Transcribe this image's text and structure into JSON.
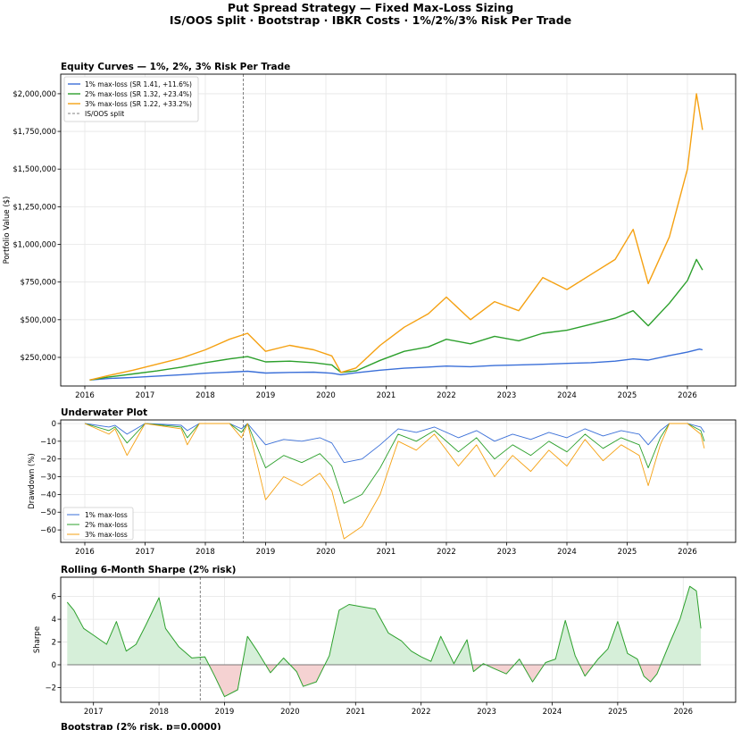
{
  "suptitle": {
    "line1": "Put Spread Strategy — Fixed Max-Loss Sizing",
    "line2": "IS/OOS Split · Bootstrap · IBKR Costs · 1%/2%/3% Risk Per Trade"
  },
  "colors": {
    "s1": "#3a6fd8",
    "s2": "#2ca02c",
    "s3": "#f5a112",
    "split": "#808080",
    "pos_fill": "#d6efd9",
    "neg_fill": "#f5d2d2",
    "grid": "#e6e6e6"
  },
  "chart_data": [
    {
      "type": "line",
      "title": "Equity Curves — 1%, 2%, 3% Risk Per Trade",
      "xlabel": "",
      "ylabel": "Portfolio Value ($)",
      "xlim": [
        2015.6,
        2026.8
      ],
      "ylim": [
        60000,
        2130000
      ],
      "xticks": [
        2016,
        2017,
        2018,
        2019,
        2020,
        2021,
        2022,
        2023,
        2024,
        2025,
        2026
      ],
      "yticks": [
        250000,
        500000,
        750000,
        1000000,
        1250000,
        1500000,
        1750000,
        2000000
      ],
      "ytick_labels": [
        "$250,000",
        "$500,000",
        "$750,000",
        "$1,000,000",
        "$1,250,000",
        "$1,500,000",
        "$1,750,000",
        "$2,000,000"
      ],
      "split_x": 2018.63,
      "legend_position": "top-left",
      "legend": [
        "1% max-loss (SR 1.41, +11.6%)",
        "2% max-loss (SR 1.32, +23.4%)",
        "3% max-loss (SR 1.22, +33.2%)",
        "IS/OOS split"
      ],
      "series": [
        {
          "name": "1% max-loss (SR 1.41, +11.6%)",
          "x": [
            2016.08,
            2016.4,
            2016.8,
            2017.2,
            2017.6,
            2018.0,
            2018.4,
            2018.7,
            2019.0,
            2019.4,
            2019.8,
            2020.1,
            2020.25,
            2020.5,
            2020.9,
            2021.3,
            2021.7,
            2022.0,
            2022.4,
            2022.8,
            2023.2,
            2023.6,
            2024.0,
            2024.4,
            2024.8,
            2025.1,
            2025.35,
            2025.7,
            2026.0,
            2026.2,
            2026.25
          ],
          "values": [
            100000,
            110000,
            117000,
            126000,
            135000,
            145000,
            152000,
            158000,
            146000,
            150000,
            152000,
            145000,
            135000,
            148000,
            165000,
            178000,
            186000,
            192000,
            188000,
            196000,
            200000,
            204000,
            210000,
            215000,
            225000,
            240000,
            232000,
            262000,
            285000,
            305000,
            300000
          ]
        },
        {
          "name": "2% max-loss (SR 1.32, +23.4%)",
          "x": [
            2016.08,
            2016.4,
            2016.8,
            2017.2,
            2017.6,
            2018.0,
            2018.4,
            2018.7,
            2019.0,
            2019.4,
            2019.8,
            2020.1,
            2020.25,
            2020.5,
            2020.9,
            2021.3,
            2021.7,
            2022.0,
            2022.4,
            2022.8,
            2023.2,
            2023.6,
            2024.0,
            2024.4,
            2024.8,
            2025.1,
            2025.35,
            2025.7,
            2026.0,
            2026.15,
            2026.25
          ],
          "values": [
            100000,
            120000,
            140000,
            160000,
            185000,
            215000,
            240000,
            255000,
            220000,
            225000,
            215000,
            200000,
            150000,
            160000,
            230000,
            290000,
            320000,
            370000,
            340000,
            390000,
            360000,
            410000,
            430000,
            470000,
            510000,
            560000,
            460000,
            610000,
            760000,
            900000,
            830000
          ]
        },
        {
          "name": "3% max-loss (SR 1.22, +33.2%)",
          "x": [
            2016.08,
            2016.4,
            2016.8,
            2017.2,
            2017.6,
            2018.0,
            2018.4,
            2018.7,
            2019.0,
            2019.4,
            2019.8,
            2020.1,
            2020.25,
            2020.5,
            2020.9,
            2021.3,
            2021.7,
            2022.0,
            2022.4,
            2022.8,
            2023.2,
            2023.6,
            2024.0,
            2024.4,
            2024.8,
            2025.1,
            2025.35,
            2025.7,
            2026.0,
            2026.15,
            2026.25
          ],
          "values": [
            100000,
            130000,
            165000,
            205000,
            245000,
            300000,
            370000,
            410000,
            290000,
            330000,
            300000,
            260000,
            150000,
            180000,
            330000,
            450000,
            540000,
            650000,
            500000,
            620000,
            560000,
            780000,
            700000,
            800000,
            900000,
            1100000,
            740000,
            1050000,
            1500000,
            2000000,
            1760000
          ]
        }
      ]
    },
    {
      "type": "line",
      "title": "Underwater Plot",
      "ylabel": "Drawdown (%)",
      "xlim": [
        2015.6,
        2026.8
      ],
      "ylim": [
        -67,
        2
      ],
      "xticks": [
        2016,
        2017,
        2018,
        2019,
        2020,
        2021,
        2022,
        2023,
        2024,
        2025,
        2026
      ],
      "yticks": [
        0,
        -10,
        -20,
        -30,
        -40,
        -50,
        -60
      ],
      "ytick_labels": [
        "0",
        "−10",
        "−20",
        "−30",
        "−40",
        "−50",
        "−60"
      ],
      "split_x": 2018.63,
      "legend_position": "bottom-left",
      "legend": [
        "1% max-loss",
        "2% max-loss",
        "3% max-loss"
      ],
      "series": [
        {
          "name": "1% max-loss",
          "x": [
            2016.0,
            2016.4,
            2016.5,
            2016.7,
            2017.0,
            2017.6,
            2017.7,
            2017.9,
            2018.4,
            2018.6,
            2018.7,
            2019.0,
            2019.3,
            2019.6,
            2019.9,
            2020.1,
            2020.3,
            2020.6,
            2020.9,
            2021.2,
            2021.5,
            2021.8,
            2022.2,
            2022.5,
            2022.8,
            2023.1,
            2023.4,
            2023.7,
            2024.0,
            2024.3,
            2024.6,
            2024.9,
            2025.2,
            2025.35,
            2025.55,
            2025.7,
            2026.0,
            2026.22,
            2026.28
          ],
          "values": [
            0,
            -2,
            -1,
            -6,
            0,
            -1,
            -4,
            0,
            0,
            -3,
            0,
            -12,
            -9,
            -10,
            -8,
            -11,
            -22,
            -20,
            -12,
            -3,
            -5,
            -2,
            -8,
            -4,
            -10,
            -6,
            -9,
            -5,
            -8,
            -3,
            -7,
            -4,
            -6,
            -12,
            -4,
            0,
            0,
            -2,
            -5
          ]
        },
        {
          "name": "2% max-loss",
          "x": [
            2016.0,
            2016.4,
            2016.5,
            2016.7,
            2017.0,
            2017.6,
            2017.7,
            2017.9,
            2018.4,
            2018.6,
            2018.7,
            2019.0,
            2019.3,
            2019.6,
            2019.9,
            2020.1,
            2020.3,
            2020.6,
            2020.9,
            2021.2,
            2021.5,
            2021.8,
            2022.2,
            2022.5,
            2022.8,
            2023.1,
            2023.4,
            2023.7,
            2024.0,
            2024.3,
            2024.6,
            2024.9,
            2025.2,
            2025.35,
            2025.55,
            2025.7,
            2026.0,
            2026.22,
            2026.28
          ],
          "values": [
            0,
            -4,
            -2,
            -11,
            0,
            -2,
            -8,
            0,
            0,
            -5,
            0,
            -25,
            -18,
            -22,
            -17,
            -24,
            -45,
            -40,
            -25,
            -6,
            -10,
            -4,
            -16,
            -8,
            -20,
            -12,
            -18,
            -10,
            -16,
            -6,
            -14,
            -8,
            -12,
            -25,
            -8,
            0,
            0,
            -4,
            -10
          ]
        },
        {
          "name": "3% max-loss",
          "x": [
            2016.0,
            2016.4,
            2016.5,
            2016.7,
            2017.0,
            2017.6,
            2017.7,
            2017.9,
            2018.4,
            2018.6,
            2018.7,
            2019.0,
            2019.3,
            2019.6,
            2019.9,
            2020.1,
            2020.3,
            2020.6,
            2020.9,
            2021.2,
            2021.5,
            2021.8,
            2022.2,
            2022.5,
            2022.8,
            2023.1,
            2023.4,
            2023.7,
            2024.0,
            2024.3,
            2024.6,
            2024.9,
            2025.2,
            2025.35,
            2025.55,
            2025.7,
            2026.0,
            2026.22,
            2026.28
          ],
          "values": [
            0,
            -6,
            -3,
            -18,
            0,
            -3,
            -12,
            0,
            0,
            -8,
            0,
            -43,
            -30,
            -35,
            -28,
            -38,
            -65,
            -58,
            -40,
            -10,
            -15,
            -6,
            -24,
            -12,
            -30,
            -18,
            -27,
            -15,
            -24,
            -9,
            -21,
            -12,
            -18,
            -35,
            -12,
            0,
            0,
            -6,
            -14
          ]
        }
      ]
    },
    {
      "type": "area",
      "title": "Rolling 6-Month Sharpe (2% risk)",
      "ylabel": "Sharpe",
      "xlim": [
        2016.5,
        2026.8
      ],
      "ylim": [
        -3.3,
        7.7
      ],
      "xticks": [
        2017,
        2018,
        2019,
        2020,
        2021,
        2022,
        2023,
        2024,
        2025,
        2026
      ],
      "yticks": [
        -2,
        0,
        2,
        4,
        6
      ],
      "ytick_labels": [
        "−2",
        "0",
        "2",
        "4",
        "6"
      ],
      "split_x": 2018.63,
      "series": [
        {
          "name": "2% risk",
          "x": [
            2016.6,
            2016.7,
            2016.85,
            2017.0,
            2017.2,
            2017.35,
            2017.5,
            2017.65,
            2017.8,
            2018.0,
            2018.1,
            2018.3,
            2018.5,
            2018.7,
            2018.85,
            2019.0,
            2019.2,
            2019.35,
            2019.5,
            2019.7,
            2019.9,
            2020.1,
            2020.2,
            2020.4,
            2020.6,
            2020.75,
            2020.9,
            2021.1,
            2021.3,
            2021.5,
            2021.7,
            2021.85,
            2022.0,
            2022.15,
            2022.3,
            2022.5,
            2022.7,
            2022.8,
            2022.95,
            2023.1,
            2023.3,
            2023.5,
            2023.7,
            2023.9,
            2024.05,
            2024.2,
            2024.35,
            2024.5,
            2024.7,
            2024.85,
            2025.0,
            2025.15,
            2025.3,
            2025.4,
            2025.5,
            2025.6,
            2025.8,
            2025.95,
            2026.1,
            2026.2,
            2026.27
          ],
          "values": [
            5.5,
            4.8,
            3.2,
            2.6,
            1.8,
            3.8,
            1.2,
            1.8,
            3.5,
            5.9,
            3.2,
            1.6,
            0.6,
            0.7,
            -1.0,
            -2.8,
            -2.2,
            2.5,
            1.2,
            -0.7,
            0.6,
            -0.6,
            -1.9,
            -1.5,
            0.8,
            4.8,
            5.3,
            5.1,
            4.9,
            2.8,
            2.1,
            1.2,
            0.7,
            0.3,
            2.5,
            0.1,
            2.2,
            -0.6,
            0.1,
            -0.3,
            -0.8,
            0.5,
            -1.5,
            0.2,
            0.5,
            3.9,
            0.8,
            -1.0,
            0.5,
            1.4,
            3.8,
            1.0,
            0.5,
            -1.0,
            -1.5,
            -0.8,
            2.0,
            4.0,
            6.9,
            6.5,
            3.2
          ]
        }
      ]
    },
    {
      "type": "bar",
      "title": "Bootstrap (2% risk, p=0.0000)"
    }
  ]
}
